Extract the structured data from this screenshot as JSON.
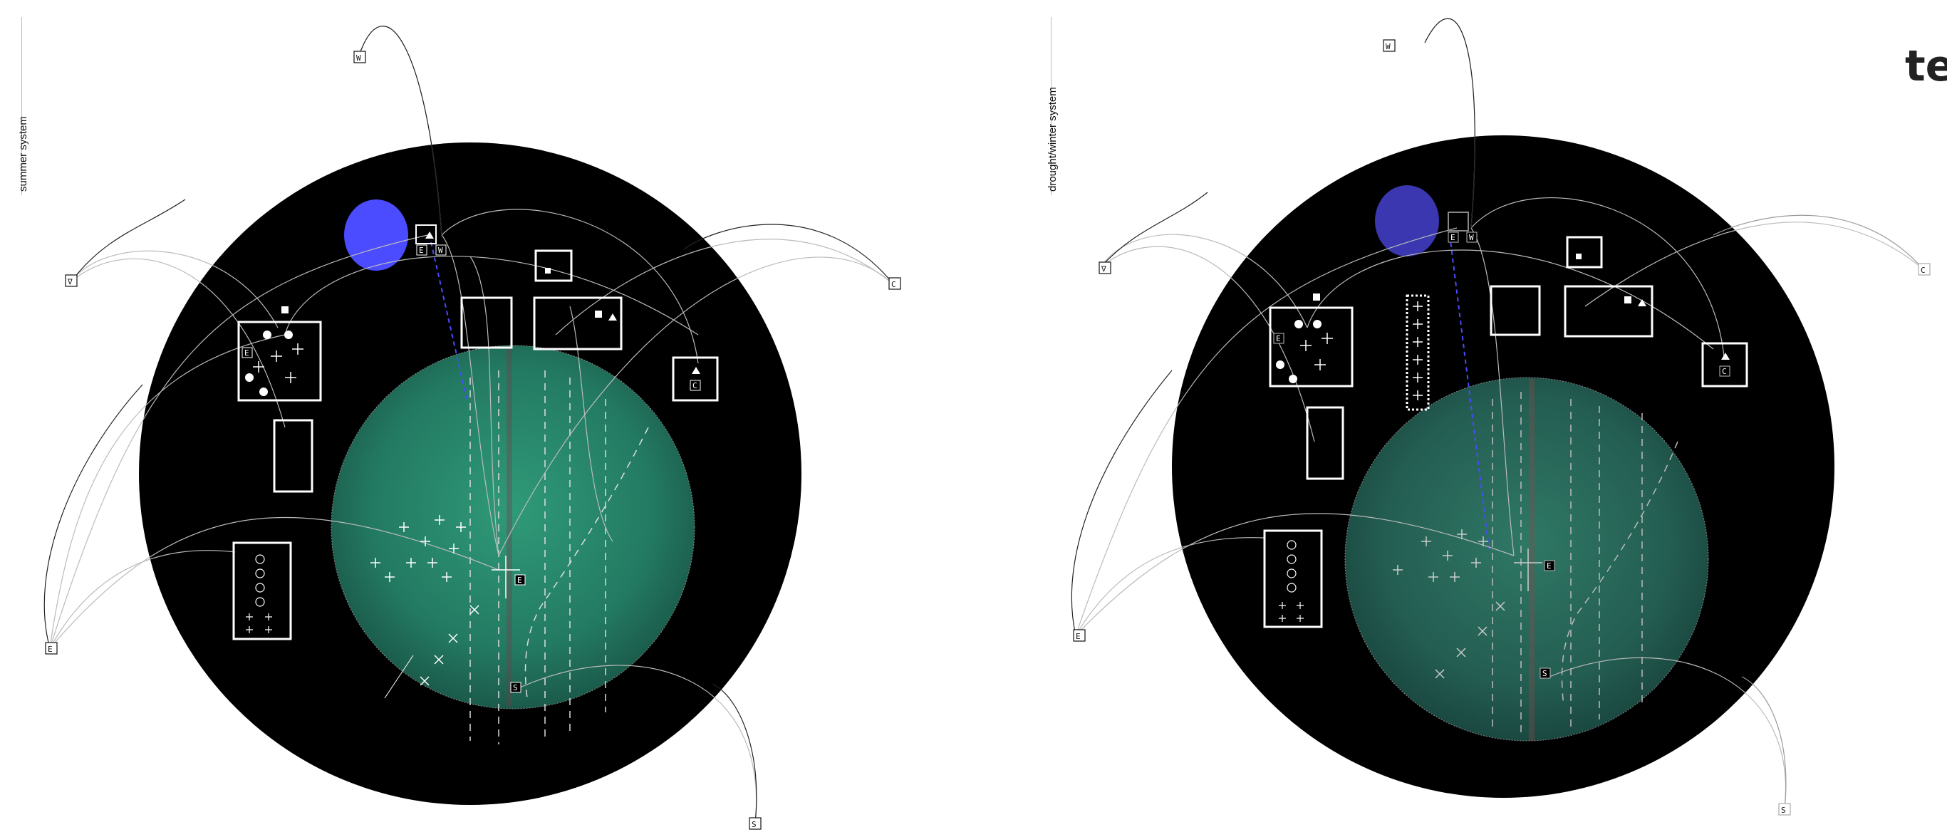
{
  "panels": [
    {
      "label": "summer system",
      "external_nodes": [
        "W",
        "∇",
        "C",
        "E",
        "S"
      ],
      "zone_tags": [
        "E",
        "W",
        "S",
        "E",
        "E",
        "C"
      ],
      "moon_color": "#4b4bff"
    },
    {
      "label": "drought/winter system",
      "external_nodes": [
        "W",
        "∇",
        "C",
        "E",
        "S"
      ],
      "zone_tags": [
        "E",
        "W",
        "S",
        "E",
        "E",
        "C"
      ],
      "moon_color": "#3a37b0"
    }
  ],
  "corner_text": "te",
  "colors": {
    "field": "#2a8a6e",
    "field_dim": "#2f6a5c",
    "circle": "#000000",
    "line": "#444444"
  }
}
